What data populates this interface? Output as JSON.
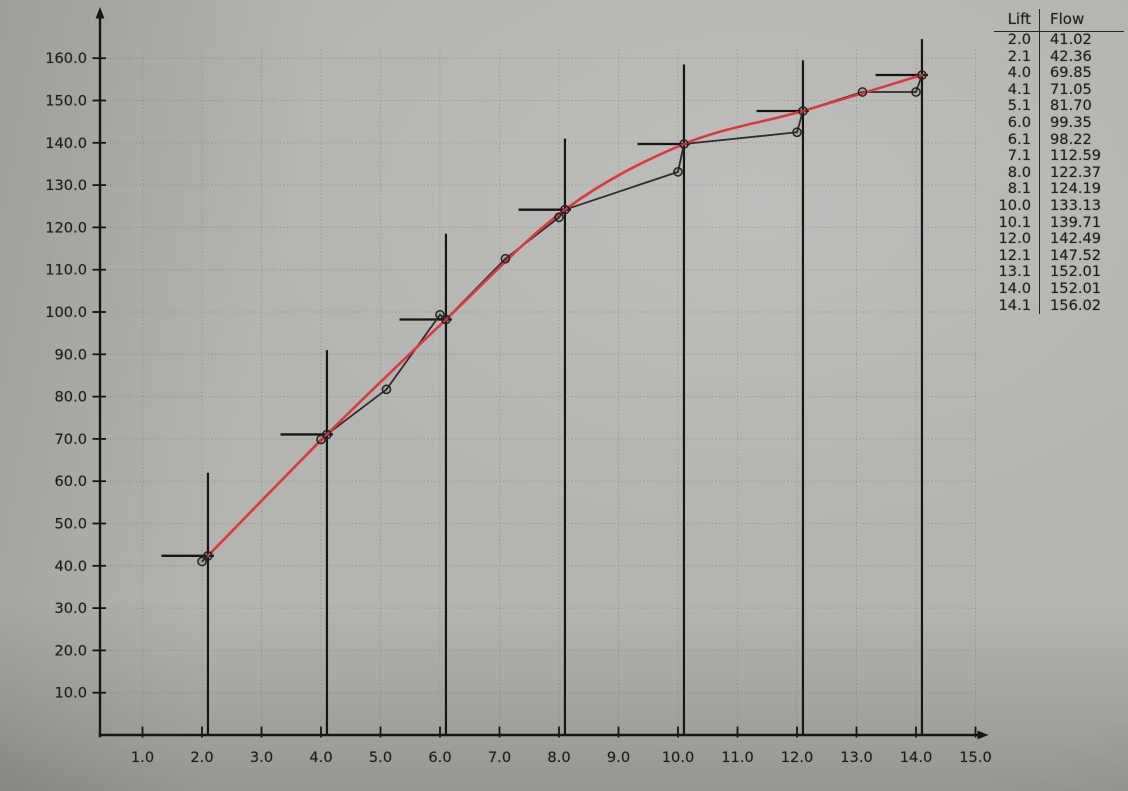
{
  "photo": {
    "background_color": "#b3b5b1",
    "vignette_color": "#8f918d"
  },
  "table": {
    "headers": [
      "Lift",
      "Flow"
    ],
    "rows": [
      [
        "2.0",
        "41.02"
      ],
      [
        "2.1",
        "42.36"
      ],
      [
        "4.0",
        "69.85"
      ],
      [
        "4.1",
        "71.05"
      ],
      [
        "5.1",
        "81.70"
      ],
      [
        "6.0",
        "99.35"
      ],
      [
        "6.1",
        "98.22"
      ],
      [
        "7.1",
        "112.59"
      ],
      [
        "8.0",
        "122.37"
      ],
      [
        "8.1",
        "124.19"
      ],
      [
        "10.0",
        "133.13"
      ],
      [
        "10.1",
        "139.71"
      ],
      [
        "12.0",
        "142.49"
      ],
      [
        "12.1",
        "147.52"
      ],
      [
        "13.1",
        "152.01"
      ],
      [
        "14.0",
        "152.01"
      ],
      [
        "14.1",
        "156.02"
      ]
    ]
  },
  "chart_data": {
    "type": "line",
    "xlabel": "",
    "ylabel": "",
    "xlim": [
      0.4,
      15.6
    ],
    "ylim": [
      0,
      168
    ],
    "grid": true,
    "grid_style": "dotted",
    "grid_color": "#6f716e",
    "axis_color": "#161616",
    "x_tick_labels": [
      "1.0",
      "2.0",
      "3.0",
      "4.0",
      "5.0",
      "6.0",
      "7.0",
      "8.0",
      "9.0",
      "10.0",
      "11.0",
      "12.0",
      "13.0",
      "14.0",
      "15.0"
    ],
    "y_tick_labels": [
      "10.0",
      "20.0",
      "30.0",
      "40.0",
      "50.0",
      "60.0",
      "70.0",
      "80.0",
      "90.0",
      "100.0",
      "110.0",
      "120.0",
      "130.0",
      "140.0",
      "150.0",
      "160.0"
    ],
    "series": [
      {
        "name": "measured flow points (black polyline with circle markers)",
        "color": "#2e2e2e",
        "marker": "open-circle",
        "points": [
          [
            2.0,
            41.02
          ],
          [
            2.1,
            42.36
          ],
          [
            4.0,
            69.85
          ],
          [
            4.1,
            71.05
          ],
          [
            5.1,
            81.7
          ],
          [
            6.0,
            99.35
          ],
          [
            6.1,
            98.22
          ],
          [
            7.1,
            112.59
          ],
          [
            8.0,
            122.37
          ],
          [
            8.1,
            124.19
          ],
          [
            10.0,
            133.13
          ],
          [
            10.1,
            139.71
          ],
          [
            12.0,
            142.49
          ],
          [
            12.1,
            147.52
          ],
          [
            13.1,
            152.01
          ],
          [
            14.0,
            152.01
          ],
          [
            14.1,
            156.02
          ]
        ]
      },
      {
        "name": "smoothed flow curve (red)",
        "color": "#e0383c",
        "marker": "none",
        "points": [
          [
            2.1,
            42.36
          ],
          [
            4.1,
            71.05
          ],
          [
            6.1,
            98.22
          ],
          [
            8.1,
            124.19
          ],
          [
            10.1,
            139.71
          ],
          [
            12.1,
            147.52
          ],
          [
            14.1,
            156.02
          ]
        ]
      }
    ],
    "test_point_markers": [
      {
        "x": 2.1,
        "flow": 42.36,
        "line_top_flow": 62
      },
      {
        "x": 4.1,
        "flow": 71.05,
        "line_top_flow": 91
      },
      {
        "x": 6.1,
        "flow": 98.22,
        "line_top_flow": 118.5
      },
      {
        "x": 8.1,
        "flow": 124.19,
        "line_top_flow": 141
      },
      {
        "x": 10.1,
        "flow": 139.71,
        "line_top_flow": 158.5
      },
      {
        "x": 12.1,
        "flow": 147.52,
        "line_top_flow": 159.5
      },
      {
        "x": 14.1,
        "flow": 156.02,
        "line_top_flow": 164.5
      }
    ],
    "marker_cap_extent": {
      "left": 0.78,
      "right": 0.1
    }
  }
}
